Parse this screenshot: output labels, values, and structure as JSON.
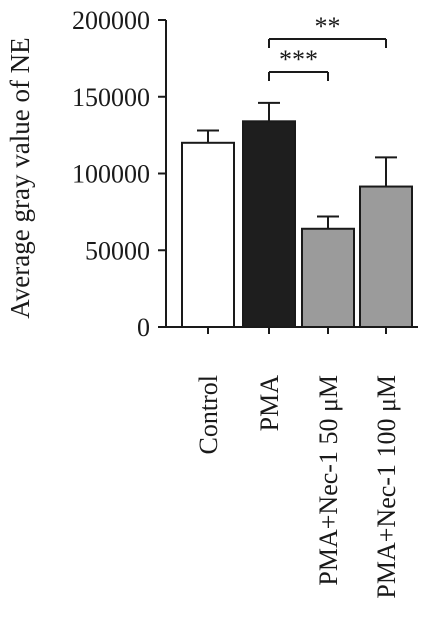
{
  "chart_data": {
    "type": "bar",
    "title": "",
    "xlabel": "",
    "ylabel": "Average gray value of NE",
    "ylim": [
      0,
      200000
    ],
    "yticks": [
      "0",
      "50000",
      "100000",
      "150000",
      "200000"
    ],
    "ytick_values": [
      0,
      50000,
      100000,
      150000,
      200000
    ],
    "categories": [
      "Control",
      "PMA",
      "PMA+Nec-1 50 μM",
      "PMA+Nec-1 100 μM"
    ],
    "values": [
      120000,
      134000,
      64000,
      91500
    ],
    "errors": [
      8000,
      12000,
      8000,
      19000
    ],
    "bar_colors": [
      "#ffffff",
      "#1e1e1e",
      "#9b9b9b",
      "#9b9b9b"
    ],
    "significance": [
      {
        "from": 1,
        "to": 2,
        "label": "***"
      },
      {
        "from": 1,
        "to": 3,
        "label": "**"
      }
    ],
    "grid": false,
    "legend": "none"
  }
}
